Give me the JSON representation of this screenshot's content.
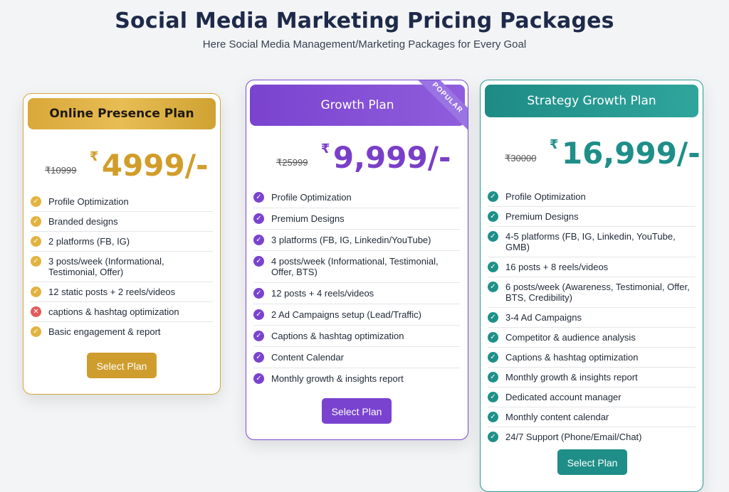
{
  "page": {
    "title": "Social Media Marketing Pricing Packages",
    "subtitle": "Here Social Media Management/Marketing Packages for Every Goal"
  },
  "colors": {
    "gold": "#d19d2a",
    "purple": "#7a43cf",
    "teal": "#1f8e88",
    "title": "#1e2a4a"
  },
  "plans": [
    {
      "name": "Online Presence Plan",
      "old_price": "₹10999",
      "currency": "₹",
      "price": "4999/-",
      "button": "Select Plan",
      "features": [
        {
          "text": "Profile Optimization",
          "icon": "check-icon"
        },
        {
          "text": "Branded designs",
          "icon": "check-icon"
        },
        {
          "text": "2 platforms (FB, IG)",
          "icon": "check-icon"
        },
        {
          "text": "3 posts/week (Informational, Testimonial, Offer)",
          "icon": "check-icon"
        },
        {
          "text": "12 static posts + 2 reels/videos",
          "icon": "check-icon"
        },
        {
          "text": "captions & hashtag optimization",
          "icon": "cross-icon"
        },
        {
          "text": "Basic engagement & report",
          "icon": "check-icon"
        }
      ]
    },
    {
      "name": "Growth Plan",
      "badge": "POPULAR",
      "old_price": "₹25999",
      "currency": "₹",
      "price": "9,999/-",
      "button": "Select Plan",
      "features": [
        {
          "text": "Profile Optimization",
          "icon": "check-icon"
        },
        {
          "text": "Premium Designs",
          "icon": "check-icon"
        },
        {
          "text": "3 platforms (FB, IG, Linkedin/YouTube)",
          "icon": "check-icon"
        },
        {
          "text": "4 posts/week (Informational, Testimonial, Offer, BTS)",
          "icon": "check-icon"
        },
        {
          "text": "12 posts + 4 reels/videos",
          "icon": "check-icon"
        },
        {
          "text": "2 Ad Campaigns setup (Lead/Traffic)",
          "icon": "check-icon"
        },
        {
          "text": "Captions & hashtag optimization",
          "icon": "check-icon"
        },
        {
          "text": "Content Calendar",
          "icon": "check-icon"
        },
        {
          "text": "Monthly growth & insights report",
          "icon": "check-icon"
        }
      ]
    },
    {
      "name": "Strategy Growth Plan",
      "old_price": "₹30000",
      "currency": "₹",
      "price": "16,999/-",
      "button": "Select Plan",
      "features": [
        {
          "text": "Profile Optimization",
          "icon": "check-icon"
        },
        {
          "text": "Premium Designs",
          "icon": "check-icon"
        },
        {
          "text": "4-5 platforms (FB, IG, Linkedin, YouTube, GMB)",
          "icon": "check-icon"
        },
        {
          "text": "16 posts + 8 reels/videos",
          "icon": "check-icon"
        },
        {
          "text": "6 posts/week (Awareness, Testimonial, Offer, BTS, Credibility)",
          "icon": "check-icon"
        },
        {
          "text": "3-4 Ad Campaigns",
          "icon": "check-icon"
        },
        {
          "text": "Competitor & audience analysis",
          "icon": "check-icon"
        },
        {
          "text": "Captions & hashtag optimization",
          "icon": "check-icon"
        },
        {
          "text": "Monthly growth & insights report",
          "icon": "check-icon"
        },
        {
          "text": "Dedicated account manager",
          "icon": "check-icon"
        },
        {
          "text": "Monthly content calendar",
          "icon": "check-icon"
        },
        {
          "text": "24/7 Support (Phone/Email/Chat)",
          "icon": "check-icon"
        }
      ]
    }
  ]
}
